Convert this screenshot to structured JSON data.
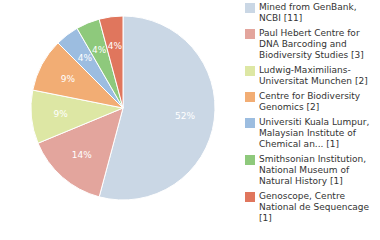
{
  "chart_data": {
    "type": "pie",
    "categories": [
      "Mined from GenBank, NCBI [11]",
      "Paul Hebert Centre for DNA Barcoding and Biodiversity Studies [3]",
      "Ludwig-Maximilians-Universitat Munchen [2]",
      "Centre for Biodiversity Genomics [2]",
      "Universiti Kuala Lumpur, Malaysian Institute of Chemical an... [1]",
      "Smithsonian Institution, National Museum of Natural History [1]",
      "Genoscope, Centre National de Sequencage [1]"
    ],
    "values": [
      52,
      14,
      9,
      9,
      4,
      4,
      4
    ],
    "value_labels": [
      "52%",
      "14%",
      "9%",
      "9%",
      "4%",
      "4%",
      "4%"
    ],
    "colors": [
      "#cad7e5",
      "#e3a59d",
      "#dde7a4",
      "#f2ad74",
      "#9cbde0",
      "#8ec97c",
      "#e0765d"
    ],
    "data_labels": true,
    "legend": "right"
  }
}
